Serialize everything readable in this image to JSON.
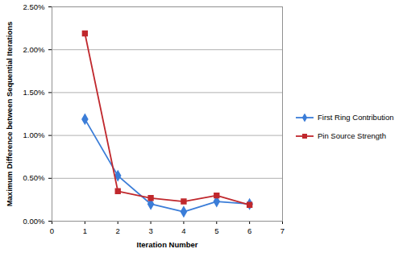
{
  "chart_data": {
    "type": "line",
    "x_label": "Iteration Number",
    "y_label": "Maximum Difference between Sequential Iterations",
    "x": [
      1,
      2,
      3,
      4,
      5,
      6
    ],
    "series": [
      {
        "name": "First Ring Contribution",
        "color": "#3b7dd8",
        "marker": "diamond",
        "values": [
          1.19,
          0.53,
          0.2,
          0.11,
          0.23,
          0.2
        ]
      },
      {
        "name": "Pin Source Strength",
        "color": "#c0282d",
        "marker": "square",
        "values": [
          2.19,
          0.35,
          0.27,
          0.23,
          0.3,
          0.19
        ]
      }
    ],
    "xlim": [
      0,
      7
    ],
    "xticks": [
      0,
      1,
      2,
      3,
      4,
      5,
      6,
      7
    ],
    "ylim": [
      0,
      2.5
    ],
    "yticks": [
      {
        "value": 0,
        "label": "0.00%"
      },
      {
        "value": 0.5,
        "label": "0.50%"
      },
      {
        "value": 1,
        "label": "1.00%"
      },
      {
        "value": 1.5,
        "label": "1.50%"
      },
      {
        "value": 2,
        "label": "2.00%"
      },
      {
        "value": 2.5,
        "label": "2.50%"
      }
    ],
    "grid": true,
    "legend": "right"
  }
}
